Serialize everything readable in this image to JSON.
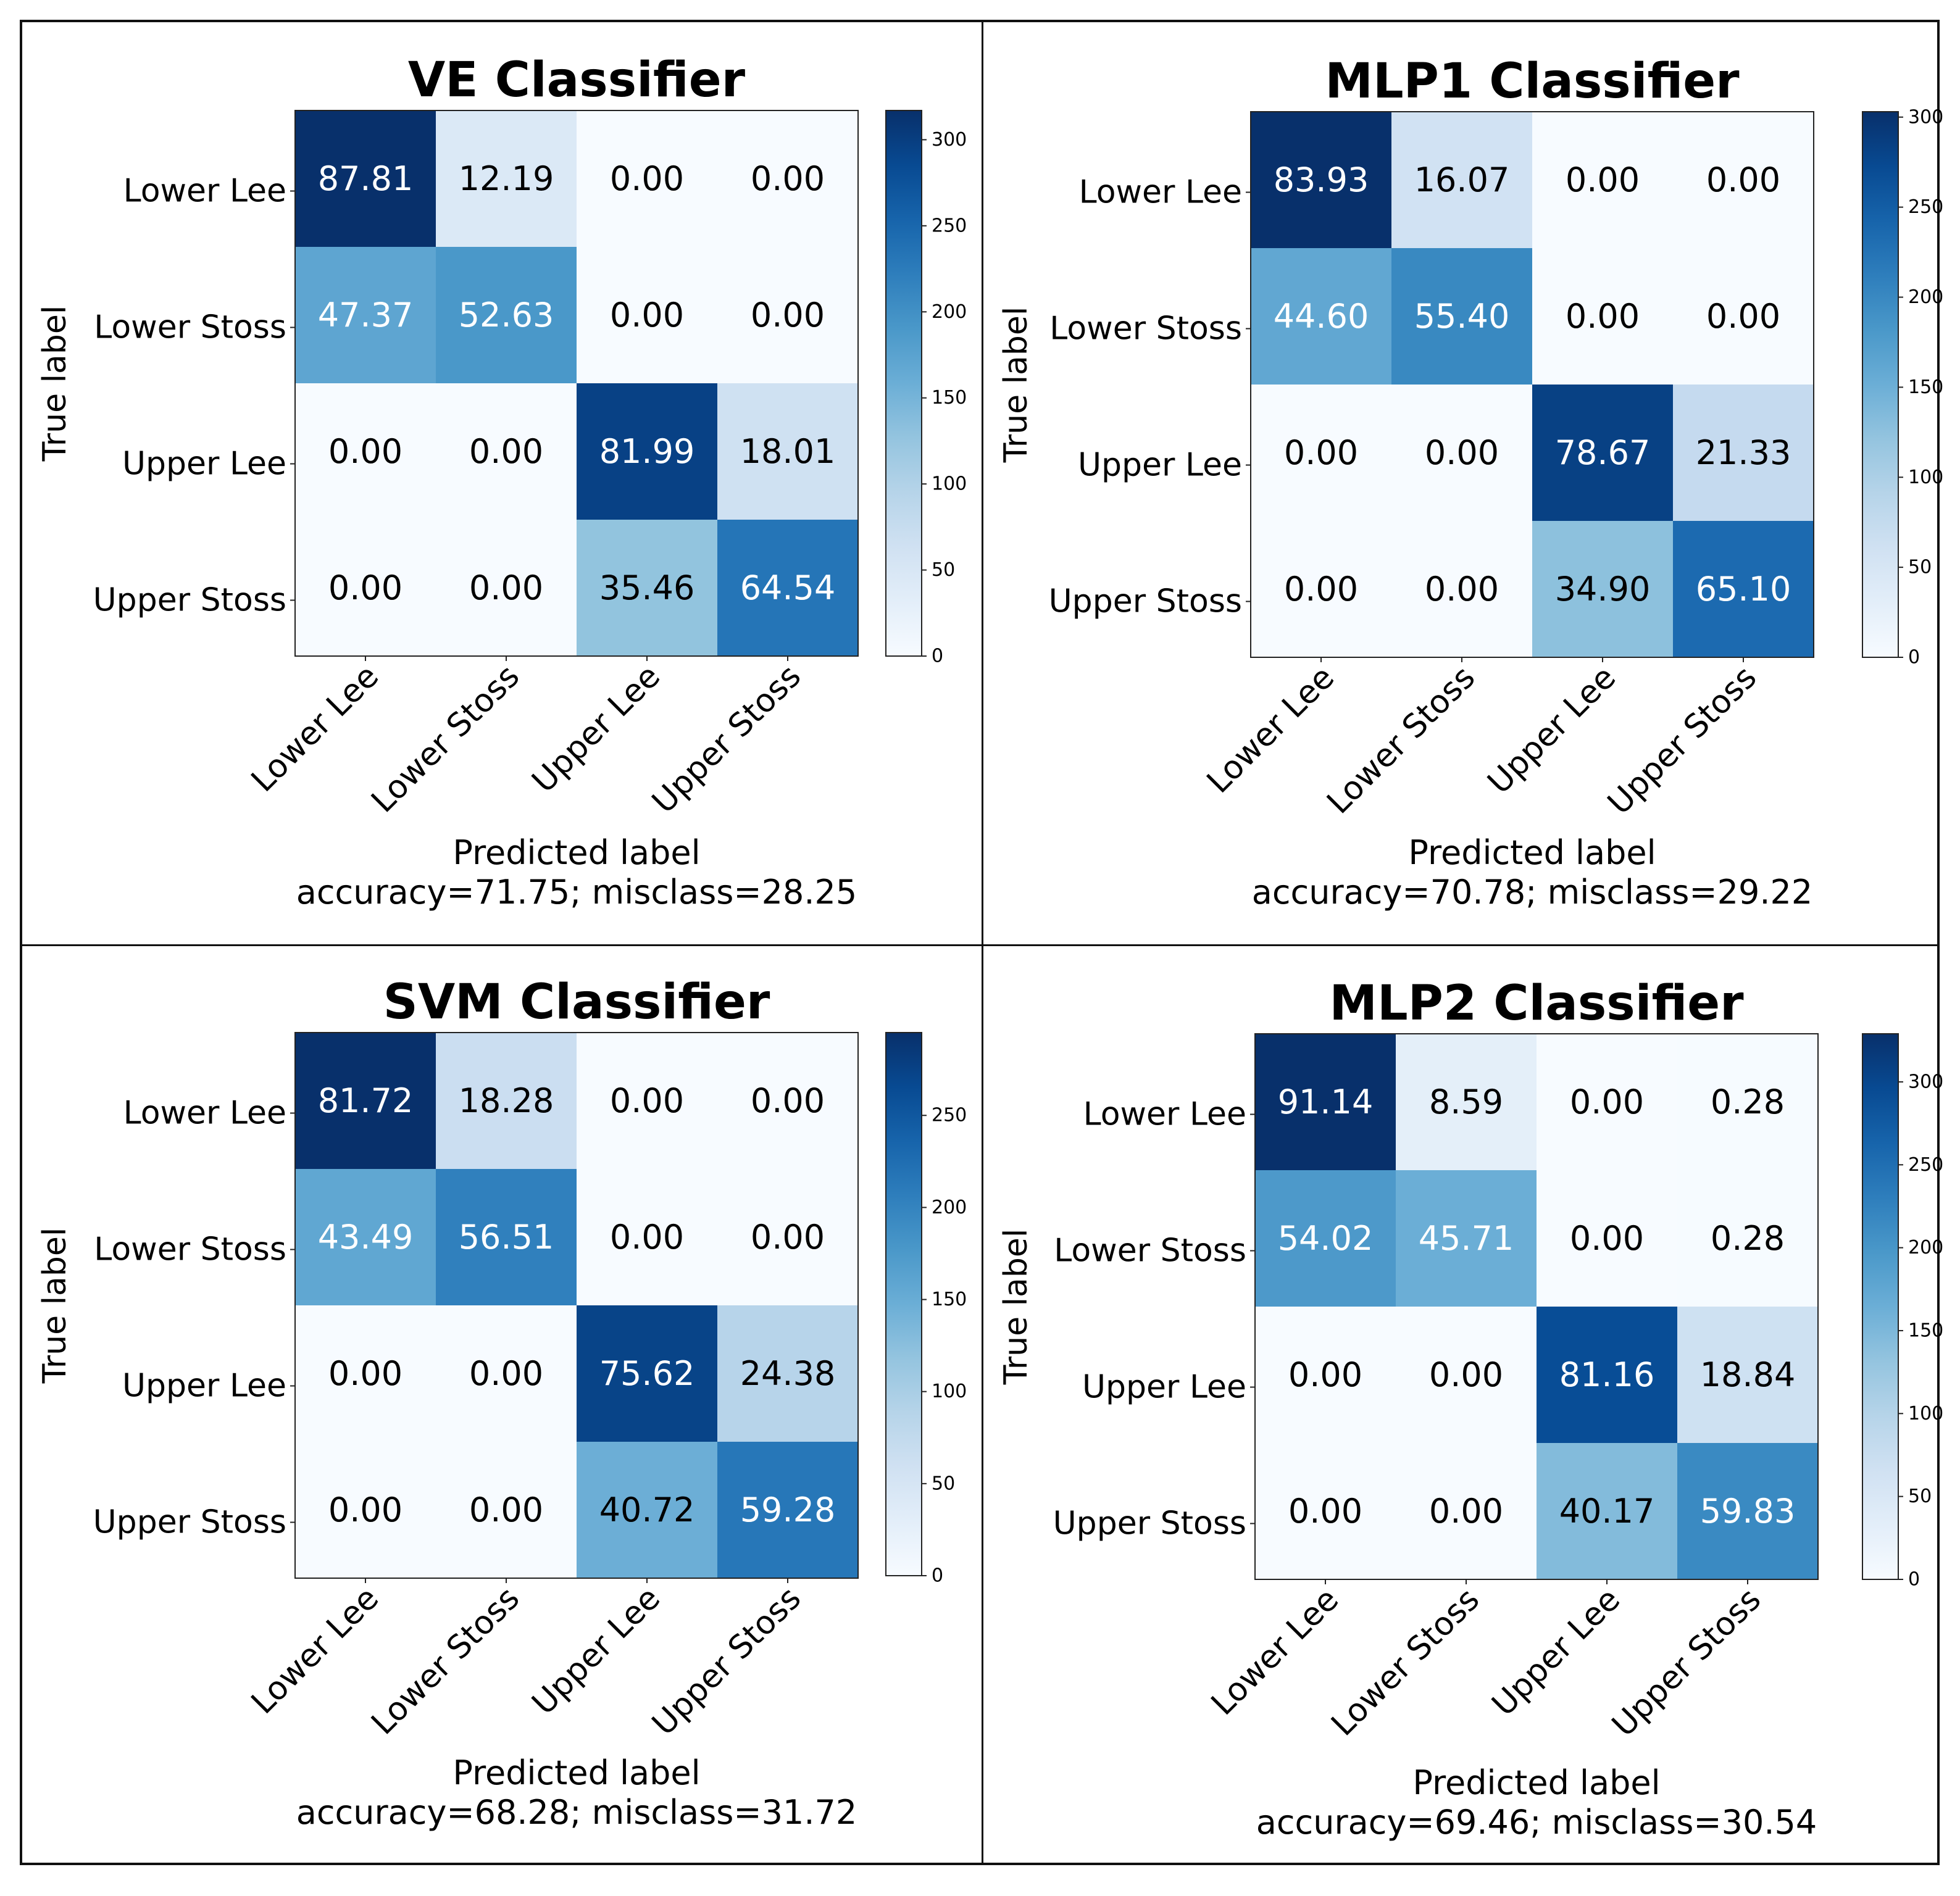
{
  "chart_data": [
    {
      "type": "heatmap",
      "title": "VE Classifier",
      "xlabel": "Predicted label",
      "ylabel": "True label",
      "caption": "accuracy=71.75; misclass=28.25",
      "x_categories": [
        "Lower Lee",
        "Lower Stoss",
        "Upper Lee",
        "Upper Stoss"
      ],
      "y_categories": [
        "Lower Lee",
        "Lower Stoss",
        "Upper Lee",
        "Upper Stoss"
      ],
      "values": [
        [
          "87.81",
          "12.19",
          "0.00",
          "0.00"
        ],
        [
          "47.37",
          "52.63",
          "0.00",
          "0.00"
        ],
        [
          "0.00",
          "0.00",
          "81.99",
          "18.01"
        ],
        [
          "0.00",
          "0.00",
          "35.46",
          "64.54"
        ]
      ],
      "counts": [
        [
          317,
          44,
          0,
          0
        ],
        [
          171,
          190,
          0,
          0
        ],
        [
          0,
          0,
          296,
          65
        ],
        [
          0,
          0,
          128,
          233
        ]
      ],
      "colorbar": {
        "min": 0,
        "max": 317,
        "ticks": [
          0,
          50,
          100,
          150,
          200,
          250,
          300
        ]
      }
    },
    {
      "type": "heatmap",
      "title": "MLP1 Classifier",
      "xlabel": "Predicted label",
      "ylabel": "True label",
      "caption": "accuracy=70.78; misclass=29.22",
      "x_categories": [
        "Lower Lee",
        "Lower Stoss",
        "Upper Lee",
        "Upper Stoss"
      ],
      "y_categories": [
        "Lower Lee",
        "Lower Stoss",
        "Upper Lee",
        "Upper Stoss"
      ],
      "values": [
        [
          "83.93",
          "16.07",
          "0.00",
          "0.00"
        ],
        [
          "44.60",
          "55.40",
          "0.00",
          "0.00"
        ],
        [
          "0.00",
          "0.00",
          "78.67",
          "21.33"
        ],
        [
          "0.00",
          "0.00",
          "34.90",
          "65.10"
        ]
      ],
      "counts": [
        [
          303,
          58,
          0,
          0
        ],
        [
          161,
          200,
          0,
          0
        ],
        [
          0,
          0,
          284,
          77
        ],
        [
          0,
          0,
          126,
          235
        ]
      ],
      "colorbar": {
        "min": 0,
        "max": 303,
        "ticks": [
          0,
          50,
          100,
          150,
          200,
          250,
          300
        ]
      }
    },
    {
      "type": "heatmap",
      "title": "SVM Classifier",
      "xlabel": "Predicted label",
      "ylabel": "True label",
      "caption": "accuracy=68.28; misclass=31.72",
      "x_categories": [
        "Lower Lee",
        "Lower Stoss",
        "Upper Lee",
        "Upper Stoss"
      ],
      "y_categories": [
        "Lower Lee",
        "Lower Stoss",
        "Upper Lee",
        "Upper Stoss"
      ],
      "values": [
        [
          "81.72",
          "18.28",
          "0.00",
          "0.00"
        ],
        [
          "43.49",
          "56.51",
          "0.00",
          "0.00"
        ],
        [
          "0.00",
          "0.00",
          "75.62",
          "24.38"
        ],
        [
          "0.00",
          "0.00",
          "40.72",
          "59.28"
        ]
      ],
      "counts": [
        [
          295,
          66,
          0,
          0
        ],
        [
          157,
          204,
          0,
          0
        ],
        [
          0,
          0,
          273,
          88
        ],
        [
          0,
          0,
          147,
          214
        ]
      ],
      "colorbar": {
        "min": 0,
        "max": 295,
        "ticks": [
          0,
          50,
          100,
          150,
          200,
          250
        ]
      }
    },
    {
      "type": "heatmap",
      "title": "MLP2 Classifier",
      "xlabel": "Predicted label",
      "ylabel": "True label",
      "caption": "accuracy=69.46; misclass=30.54",
      "x_categories": [
        "Lower Lee",
        "Lower Stoss",
        "Upper Lee",
        "Upper Stoss"
      ],
      "y_categories": [
        "Lower Lee",
        "Lower Stoss",
        "Upper Lee",
        "Upper Stoss"
      ],
      "values": [
        [
          "91.14",
          "8.59",
          "0.00",
          "0.28"
        ],
        [
          "54.02",
          "45.71",
          "0.00",
          "0.28"
        ],
        [
          "0.00",
          "0.00",
          "81.16",
          "18.84"
        ],
        [
          "0.00",
          "0.00",
          "40.17",
          "59.83"
        ]
      ],
      "counts": [
        [
          329,
          31,
          0,
          1
        ],
        [
          195,
          165,
          0,
          1
        ],
        [
          0,
          0,
          293,
          68
        ],
        [
          0,
          0,
          145,
          216
        ]
      ],
      "colorbar": {
        "min": 0,
        "max": 329,
        "ticks": [
          0,
          50,
          100,
          150,
          200,
          250,
          300
        ]
      }
    }
  ]
}
